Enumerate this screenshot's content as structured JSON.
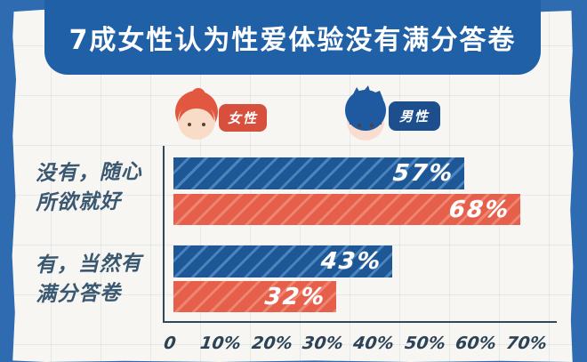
{
  "title": "7成女性认为性爱体验没有满分答卷",
  "legend": {
    "female": {
      "label": "女性",
      "color": "#d7503e"
    },
    "male": {
      "label": "男性",
      "color": "#1d4f8f"
    }
  },
  "category_labels": {
    "group1_line1": "没有，随心",
    "group1_line2": "所欲就好",
    "group2_line1": "有，当然有",
    "group2_line2": "满分答卷"
  },
  "chart_data": {
    "type": "bar",
    "orientation": "horizontal",
    "title": "7成女性认为性爱体验没有满分答卷",
    "categories": [
      "没有，随心所欲就好",
      "有，当然有满分答卷"
    ],
    "series": [
      {
        "name": "男性",
        "color": "#1d5796",
        "stripe": "#4b83bd",
        "values": [
          57,
          43
        ],
        "labels": [
          "57%",
          "43%"
        ]
      },
      {
        "name": "女性",
        "color": "#e55f4b",
        "stripe": "#ed8571",
        "values": [
          68,
          32
        ],
        "labels": [
          "68%",
          "32%"
        ]
      }
    ],
    "x_ticks": [
      "0",
      "10%",
      "20%",
      "30%",
      "40%",
      "50%",
      "60%",
      "70%"
    ],
    "x_range": [
      0,
      70
    ],
    "grid": "faint graph-paper background grid",
    "legend_position": "top",
    "bar_style": "diagonal hatched stripes, hand-drawn infographic"
  },
  "colors": {
    "frame_blue": "#2e6bb0",
    "banner_blue": "#2060a7",
    "paper": "#f7f6f2",
    "male_bar": "#1d5796",
    "female_bar": "#e55f4b",
    "axis": "#30485c",
    "handwriting": "#3a5872"
  }
}
